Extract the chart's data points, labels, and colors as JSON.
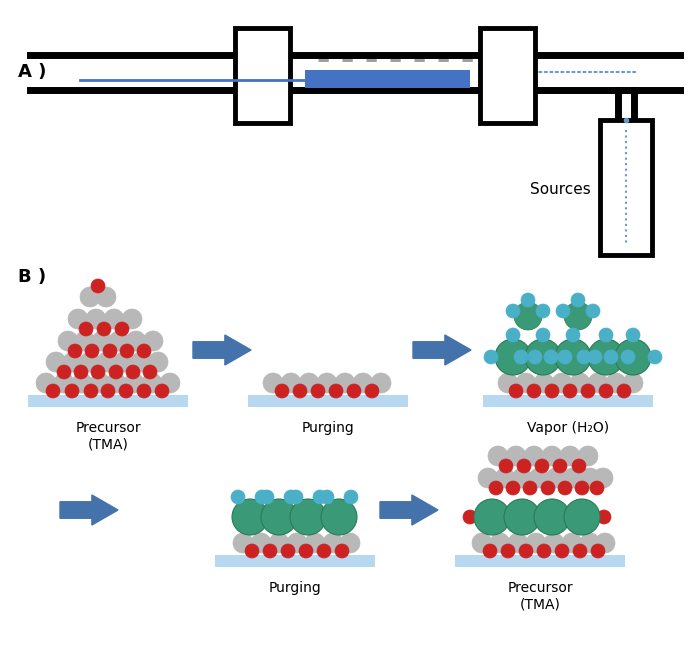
{
  "title_A": "A )",
  "title_B": "B )",
  "background_color": "#ffffff",
  "gray_color": "#b8b8b8",
  "red_color": "#cc2222",
  "green_color": "#3a9a78",
  "teal_color": "#4ab0c8",
  "substrate_color": "#b8d8f0",
  "blue_arrow_color": "#4472aa",
  "sample_color": "#4472c4",
  "arrow_color": "#6699cc",
  "sources_text": "Sources",
  "label_precursor_tma": "Precursor\n(TMA)",
  "label_purging1": "Purging",
  "label_vapor": "Vapor (H₂O)",
  "label_purging2": "Purging",
  "label_precursor_tma2": "Precursor\n(TMA)"
}
